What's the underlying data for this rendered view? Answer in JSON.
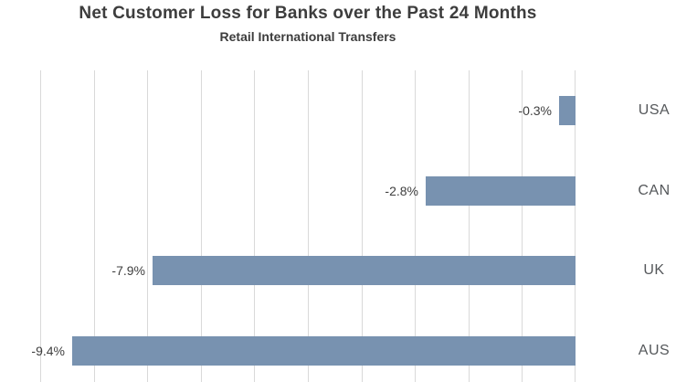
{
  "chart_data": {
    "type": "bar",
    "orientation": "horizontal",
    "title": "Net Customer Loss for Banks over the Past 24 Months",
    "subtitle": "Retail International Transfers",
    "categories": [
      "USA",
      "CAN",
      "UK",
      "AUS"
    ],
    "values": [
      -0.3,
      -2.8,
      -7.9,
      -9.4
    ],
    "value_labels": [
      "-0.3%",
      "-2.8%",
      "-7.9%",
      "-9.4%"
    ],
    "xlabel": "",
    "ylabel": "",
    "xlim": [
      -10,
      0
    ],
    "grid_step": 1,
    "grid": true,
    "legend": "none",
    "colors": {
      "bar": "#7892b0",
      "gridline": "#d9d9d9",
      "title": "#3d3d3d",
      "value_label": "#3f3f3f",
      "category_label": "#55585b",
      "background": "#ffffff"
    }
  }
}
